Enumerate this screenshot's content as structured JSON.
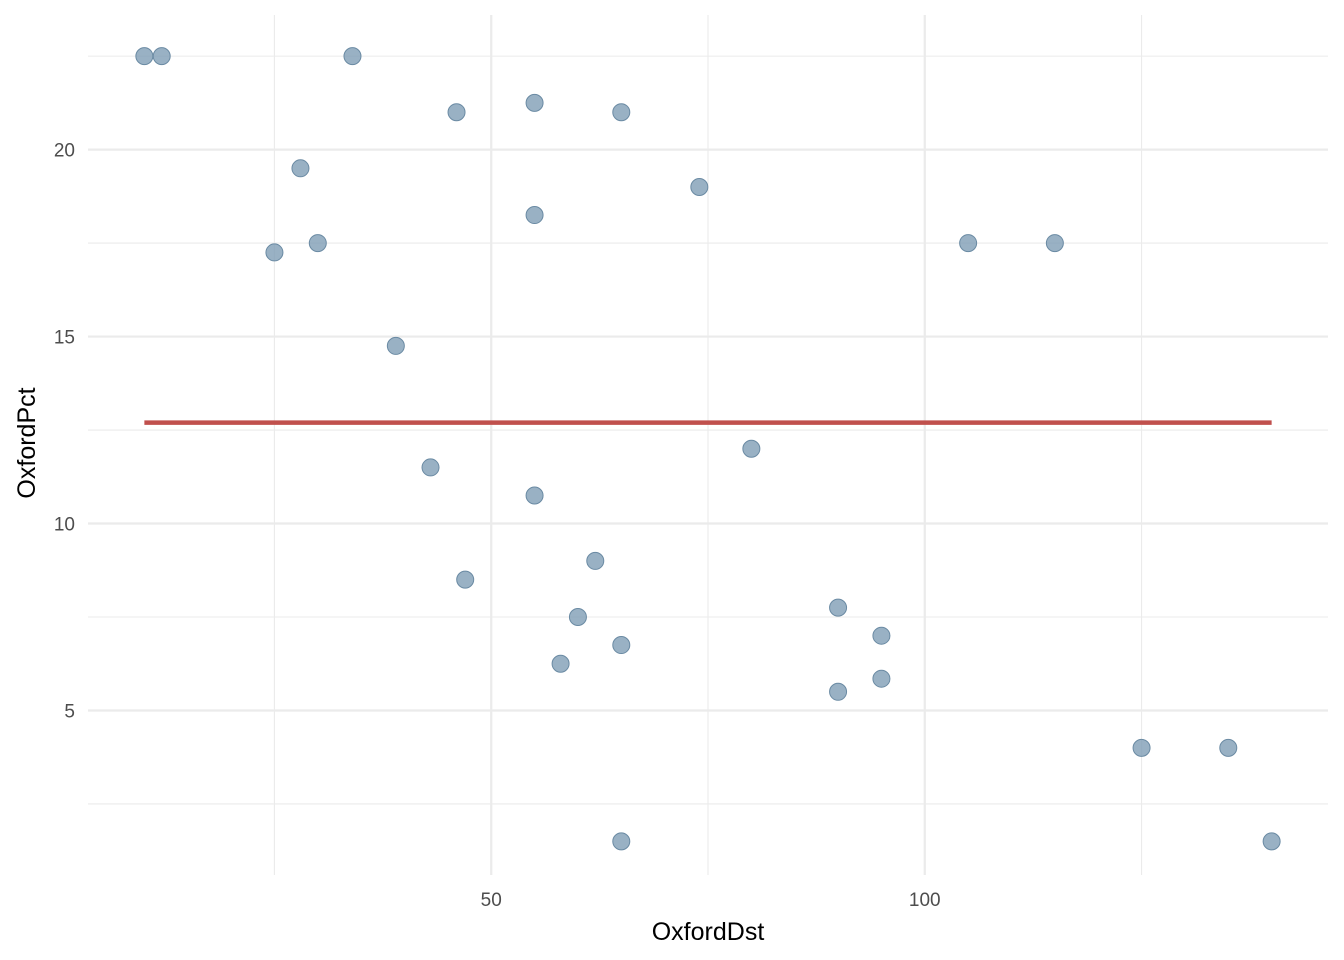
{
  "chart_data": {
    "type": "scatter",
    "xlabel": "OxfordDst",
    "ylabel": "OxfordPct",
    "xlim": [
      3.5,
      146.5
    ],
    "ylim": [
      0.6,
      23.6
    ],
    "x_ticks_major": [
      50,
      100
    ],
    "x_ticks_labels": [
      "50",
      "100"
    ],
    "x_ticks_minor": [
      25,
      75,
      125
    ],
    "y_ticks_major": [
      5,
      10,
      15,
      20
    ],
    "y_ticks_labels": [
      "5",
      "10",
      "15",
      "20"
    ],
    "y_ticks_minor": [
      2.5,
      7.5,
      12.5,
      17.5,
      22.5
    ],
    "grid": true,
    "legend": "none",
    "colors": {
      "points": "#7f9db5",
      "point_stroke": "#6a8aa3",
      "fit_line": "#c0504d",
      "grid": "#ebebeb"
    },
    "points": [
      {
        "x": 10,
        "y": 22.5
      },
      {
        "x": 12,
        "y": 22.5
      },
      {
        "x": 34,
        "y": 22.5
      },
      {
        "x": 46,
        "y": 21
      },
      {
        "x": 55,
        "y": 21.25
      },
      {
        "x": 65,
        "y": 21
      },
      {
        "x": 28,
        "y": 19.5
      },
      {
        "x": 74,
        "y": 19
      },
      {
        "x": 55,
        "y": 18.25
      },
      {
        "x": 25,
        "y": 17.25
      },
      {
        "x": 30,
        "y": 17.5
      },
      {
        "x": 105,
        "y": 17.5
      },
      {
        "x": 115,
        "y": 17.5
      },
      {
        "x": 39,
        "y": 14.75
      },
      {
        "x": 80,
        "y": 12
      },
      {
        "x": 43,
        "y": 11.5
      },
      {
        "x": 55,
        "y": 10.75
      },
      {
        "x": 62,
        "y": 9
      },
      {
        "x": 47,
        "y": 8.5
      },
      {
        "x": 60,
        "y": 7.5
      },
      {
        "x": 90,
        "y": 7.75
      },
      {
        "x": 95,
        "y": 7
      },
      {
        "x": 65,
        "y": 6.75
      },
      {
        "x": 58,
        "y": 6.25
      },
      {
        "x": 95,
        "y": 5.85
      },
      {
        "x": 90,
        "y": 5.5
      },
      {
        "x": 125,
        "y": 4
      },
      {
        "x": 135,
        "y": 4
      },
      {
        "x": 65,
        "y": 1.5
      },
      {
        "x": 140,
        "y": 1.5
      }
    ],
    "fit_line": {
      "x": [
        10,
        140
      ],
      "y": [
        12.7,
        12.7
      ]
    }
  }
}
